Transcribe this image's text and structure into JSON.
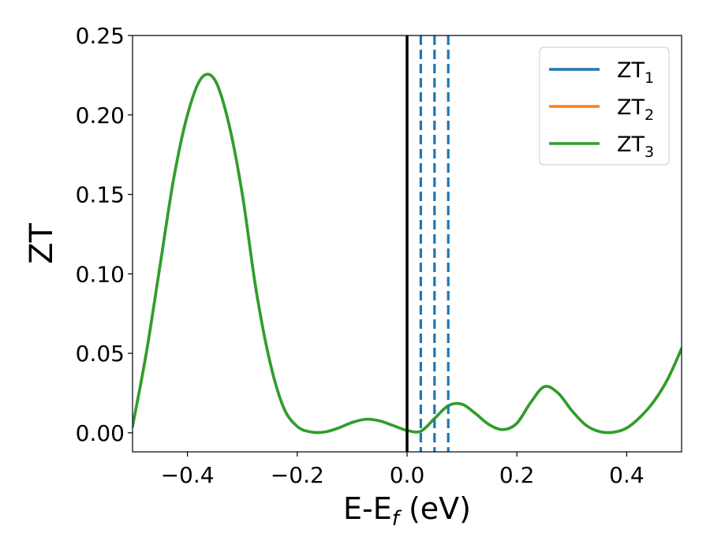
{
  "chart_data": {
    "type": "line",
    "xlabel": {
      "main": "E-E",
      "sub": "f",
      "suffix": " (eV)"
    },
    "ylabel": "ZT",
    "xlim": [
      -0.5,
      0.5
    ],
    "ylim": [
      -0.012,
      0.25
    ],
    "x_ticks": [
      {
        "value": -0.4,
        "label": "−0.4"
      },
      {
        "value": -0.2,
        "label": "−0.2"
      },
      {
        "value": 0.0,
        "label": "0.0"
      },
      {
        "value": 0.2,
        "label": "0.2"
      },
      {
        "value": 0.4,
        "label": "0.4"
      }
    ],
    "y_ticks": [
      {
        "value": 0.0,
        "label": "0.00"
      },
      {
        "value": 0.05,
        "label": "0.05"
      },
      {
        "value": 0.1,
        "label": "0.10"
      },
      {
        "value": 0.15,
        "label": "0.15"
      },
      {
        "value": 0.2,
        "label": "0.20"
      },
      {
        "value": 0.25,
        "label": "0.25"
      }
    ],
    "grid": false,
    "legend_position": "top-right",
    "vertical_lines": [
      {
        "x": 0.0,
        "style": "solid",
        "color": "#000000"
      },
      {
        "x": 0.025,
        "style": "dashed",
        "color": "#1f77b4"
      },
      {
        "x": 0.05,
        "style": "dashed",
        "color": "#1f77b4"
      },
      {
        "x": 0.075,
        "style": "dashed",
        "color": "#1f77b4"
      }
    ],
    "x": [
      -0.5,
      -0.475,
      -0.45,
      -0.425,
      -0.4,
      -0.375,
      -0.35,
      -0.325,
      -0.3,
      -0.275,
      -0.25,
      -0.225,
      -0.2,
      -0.175,
      -0.15,
      -0.125,
      -0.1,
      -0.075,
      -0.05,
      -0.025,
      0.0,
      0.025,
      0.05,
      0.075,
      0.1,
      0.125,
      0.15,
      0.175,
      0.2,
      0.225,
      0.25,
      0.275,
      0.3,
      0.325,
      0.35,
      0.375,
      0.4,
      0.425,
      0.45,
      0.475,
      0.5
    ],
    "series": [
      {
        "name": "ZT",
        "sub": "1",
        "color": "#1f77b4",
        "values": [
          0.004,
          0.05,
          0.105,
          0.16,
          0.2,
          0.223,
          0.222,
          0.195,
          0.15,
          0.09,
          0.045,
          0.016,
          0.004,
          0.0005,
          0.0005,
          0.003,
          0.0065,
          0.0085,
          0.0075,
          0.0045,
          0.0015,
          0.001,
          0.009,
          0.017,
          0.018,
          0.012,
          0.005,
          0.002,
          0.006,
          0.019,
          0.029,
          0.025,
          0.014,
          0.005,
          0.0008,
          0.0003,
          0.003,
          0.01,
          0.02,
          0.034,
          0.053
        ]
      },
      {
        "name": "ZT",
        "sub": "2",
        "color": "#ff7f0e",
        "values": [
          0.004,
          0.05,
          0.105,
          0.16,
          0.2,
          0.223,
          0.222,
          0.195,
          0.15,
          0.09,
          0.045,
          0.016,
          0.004,
          0.0005,
          0.0005,
          0.003,
          0.0065,
          0.0085,
          0.0075,
          0.0045,
          0.0015,
          0.001,
          0.009,
          0.017,
          0.018,
          0.012,
          0.005,
          0.002,
          0.006,
          0.019,
          0.029,
          0.025,
          0.014,
          0.005,
          0.0008,
          0.0003,
          0.003,
          0.01,
          0.02,
          0.034,
          0.053
        ]
      },
      {
        "name": "ZT",
        "sub": "3",
        "color": "#2ca02c",
        "values": [
          0.004,
          0.05,
          0.105,
          0.16,
          0.2,
          0.223,
          0.222,
          0.195,
          0.15,
          0.09,
          0.045,
          0.016,
          0.004,
          0.0005,
          0.0005,
          0.003,
          0.0065,
          0.0085,
          0.0075,
          0.0045,
          0.0015,
          0.001,
          0.009,
          0.017,
          0.018,
          0.012,
          0.005,
          0.002,
          0.006,
          0.019,
          0.029,
          0.025,
          0.014,
          0.005,
          0.0008,
          0.0003,
          0.003,
          0.01,
          0.02,
          0.034,
          0.053
        ]
      }
    ]
  }
}
